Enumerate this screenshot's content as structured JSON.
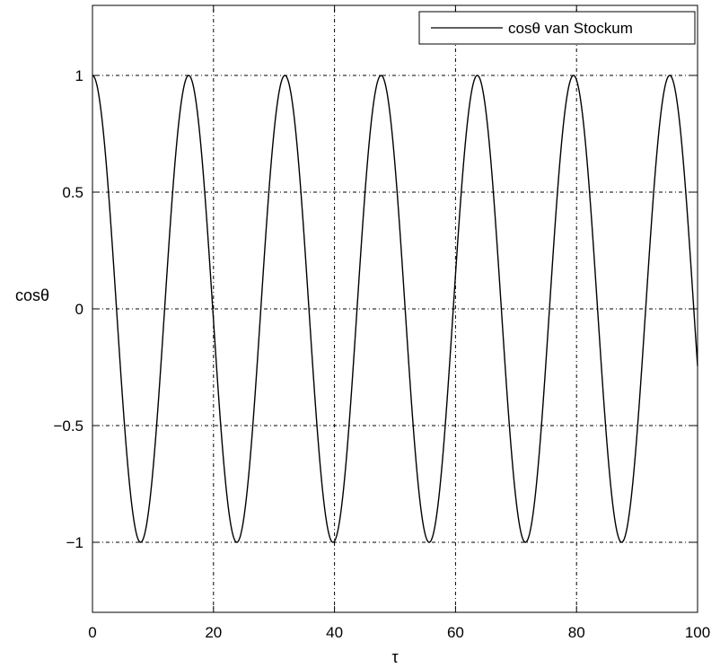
{
  "chart_data": {
    "type": "line",
    "title": "",
    "xlabel": "τ",
    "ylabel": "cosθ",
    "xlim": [
      0,
      100
    ],
    "ylim": [
      -1.3,
      1.3
    ],
    "xticks": [
      0,
      20,
      40,
      60,
      80,
      100
    ],
    "xtick_labels": [
      "0",
      "20",
      "40",
      "60",
      "80",
      "100"
    ],
    "yticks": [
      -1,
      -0.5,
      0,
      0.5,
      1
    ],
    "ytick_labels": [
      "−1",
      "−0.5",
      "0",
      "0.5",
      "1"
    ],
    "grid": true,
    "legend": {
      "position": "top-right",
      "entries": [
        "cosθ van Stockum"
      ]
    },
    "series": [
      {
        "name": "cosθ van Stockum",
        "function": "cos",
        "period": 15.9,
        "amplitude": 1,
        "color": "#000000",
        "x_range": [
          0,
          100
        ],
        "peaks_x": [
          0,
          15.9,
          31.8,
          47.7,
          63.6,
          79.5,
          95.4
        ],
        "troughs_x": [
          7.95,
          23.85,
          39.75,
          55.65,
          71.55,
          87.45
        ]
      }
    ]
  }
}
